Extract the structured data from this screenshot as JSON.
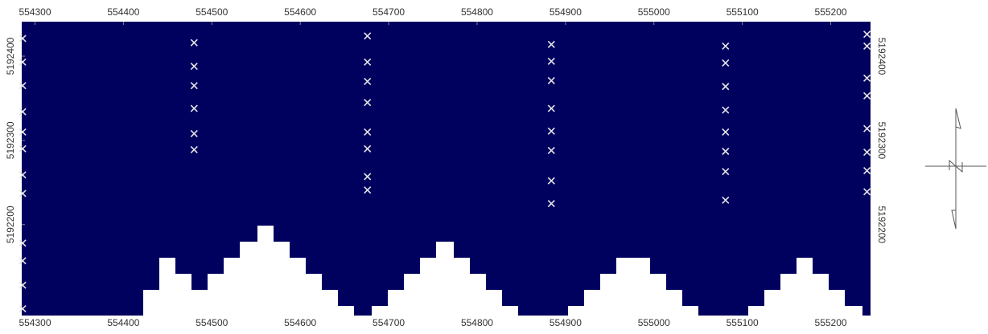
{
  "chart_data": {
    "type": "scatter",
    "xlim": [
      554285,
      555245
    ],
    "ylim": [
      5192092,
      5192441
    ],
    "xticks": [
      554300,
      554400,
      554500,
      554600,
      554700,
      554800,
      554900,
      555000,
      555100,
      555200
    ],
    "yticks": [
      5192200,
      5192300,
      5192400
    ],
    "background": "#00005f",
    "marker_color": "#e6e6e6",
    "series": [
      {
        "x": [
          554286,
          554286,
          554286,
          554286,
          554286,
          554286,
          554286,
          554286,
          554286,
          554286,
          554286,
          554286,
          554480,
          554480,
          554480,
          554480,
          554480,
          554480,
          554676,
          554676,
          554676,
          554676,
          554676,
          554676,
          554676,
          554676,
          554884,
          554884,
          554884,
          554884,
          554884,
          554884,
          554884,
          554884,
          555081,
          555081,
          555081,
          555081,
          555081,
          555081,
          555081,
          555081,
          555241,
          555241,
          555241,
          555241,
          555241,
          555241,
          555241,
          555241
        ],
        "values": [
          5192421,
          5192393,
          5192365,
          5192334,
          5192310,
          5192290,
          5192259,
          5192237,
          5192178,
          5192157,
          5192128,
          5192100,
          5192416,
          5192388,
          5192365,
          5192338,
          5192308,
          5192289,
          5192424,
          5192393,
          5192370,
          5192345,
          5192310,
          5192290,
          5192257,
          5192241,
          5192414,
          5192394,
          5192371,
          5192338,
          5192311,
          5192288,
          5192252,
          5192225,
          5192412,
          5192392,
          5192364,
          5192336,
          5192310,
          5192287,
          5192263,
          5192229,
          5192426,
          5192412,
          5192374,
          5192353,
          5192314,
          5192286,
          5192264,
          5192239
        ]
      }
    ]
  }
}
